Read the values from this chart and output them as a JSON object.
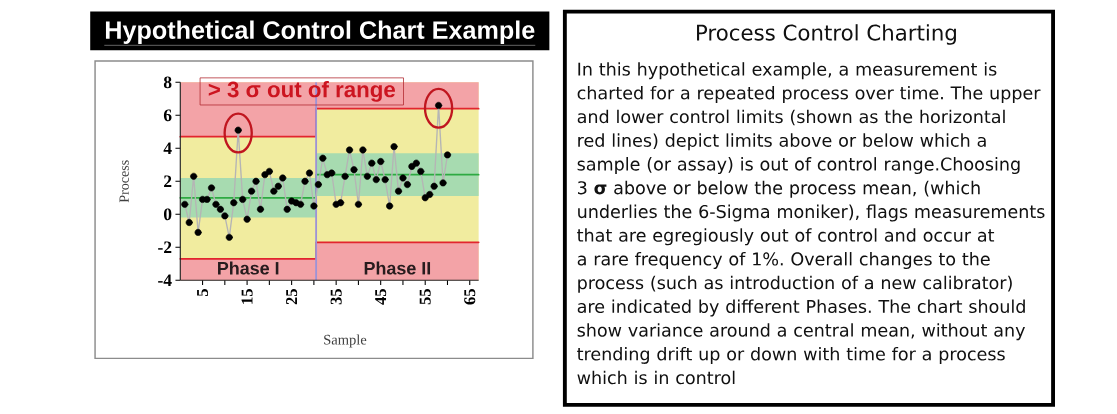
{
  "chart_data": [
    {
      "type": "line",
      "title": "Hypothetical Control Chart Example",
      "xlabel": "Sample",
      "ylabel": "Process",
      "xlim": [
        0,
        67
      ],
      "ylim": [
        -4,
        8
      ],
      "xticks": [
        5,
        {
          "value": 10,
          "label": null
        },
        15,
        {
          "value": 20,
          "label": null
        },
        25,
        {
          "value": 30,
          "label": null
        },
        35,
        {
          "value": 40,
          "label": null
        },
        45,
        {
          "value": 50,
          "label": null
        },
        55,
        {
          "value": 60,
          "label": null
        },
        65
      ],
      "yticks": [
        -4,
        -2,
        0,
        2,
        4,
        6,
        8
      ],
      "x": [
        1,
        2,
        3,
        4,
        5,
        6,
        7,
        8,
        9,
        10,
        11,
        12,
        13,
        14,
        15,
        16,
        17,
        18,
        19,
        20,
        21,
        22,
        23,
        24,
        25,
        26,
        27,
        28,
        29,
        30,
        31,
        32,
        33,
        34,
        35,
        36,
        37,
        38,
        39,
        40,
        41,
        42,
        43,
        44,
        45,
        46,
        47,
        48,
        49,
        50,
        51,
        52,
        53,
        54,
        55,
        56,
        57,
        58,
        59,
        60
      ],
      "bands": [
        {
          "axis": "x",
          "from": 0,
          "to": 30.5,
          "label": "Phase I",
          "color": "#f1ec9f"
        },
        {
          "axis": "x",
          "from": 30.5,
          "to": 67,
          "label": "Phase II",
          "color": "#f1ec9f"
        }
      ],
      "ref_lines": [
        {
          "axis": "x",
          "value": 30.5,
          "color": "#9d93d6"
        }
      ],
      "annotations": [
        "> 3 σ out of range"
      ],
      "series": [
        {
          "type": "line",
          "color": "#e2252e",
          "x": [
            0,
            30.5,
            30.5,
            67
          ],
          "values": [
            4.7,
            4.7,
            6.4,
            6.4
          ],
          "lower": [
            4.7,
            4.7,
            6.4,
            6.4
          ],
          "upper": [
            8,
            8,
            8,
            8
          ]
        },
        {
          "type": "line",
          "color": "#e2252e",
          "x": [
            0,
            30.5,
            30.5,
            67
          ],
          "values": [
            -2.7,
            -2.7,
            -1.7,
            -1.7
          ],
          "lower": [
            -4,
            -4,
            -4,
            -4
          ],
          "upper": [
            -2.7,
            -2.7,
            -1.7,
            -1.7
          ]
        },
        {
          "type": "line",
          "color": "#2eaa42",
          "x": [
            0,
            30.5,
            30.5,
            67
          ],
          "values": [
            1.0,
            1.0,
            2.4,
            2.4
          ],
          "lower": [
            -0.2,
            -0.2,
            1.1,
            1.1
          ],
          "upper": [
            2.2,
            2.2,
            3.7,
            3.7
          ]
        },
        {
          "type": "line",
          "color": "#b5b5b5",
          "values": [
            0.6,
            -0.5,
            2.3,
            -1.1,
            0.9,
            0.9,
            1.6,
            0.6,
            0.3,
            -0.1,
            -1.4,
            0.7,
            5.1,
            0.9,
            -0.3,
            1.4,
            2.0,
            0.3,
            2.4,
            2.6,
            1.4,
            1.7,
            2.2,
            0.3,
            0.8,
            0.7,
            0.6,
            2.0,
            2.5,
            0.5,
            1.8,
            3.4,
            2.4,
            2.5,
            0.6,
            0.7,
            2.3,
            3.9,
            2.7,
            0.6,
            3.9,
            2.3,
            3.1,
            2.1,
            3.2,
            2.1,
            0.5,
            4.1,
            1.4,
            2.2,
            1.8,
            2.9,
            3.1,
            2.6,
            1.0,
            1.2,
            1.7,
            6.6,
            1.9,
            3.6
          ]
        },
        {
          "type": "scatter",
          "color": "#000000",
          "marker": "circle",
          "values": [
            0.6,
            -0.5,
            2.3,
            -1.1,
            0.9,
            0.9,
            1.6,
            0.6,
            0.3,
            -0.1,
            -1.4,
            0.7,
            5.1,
            0.9,
            -0.3,
            1.4,
            2.0,
            0.3,
            2.4,
            2.6,
            1.4,
            1.7,
            2.2,
            0.3,
            0.8,
            0.7,
            0.6,
            2.0,
            2.5,
            0.5,
            1.8,
            3.4,
            2.4,
            2.5,
            0.6,
            0.7,
            2.3,
            3.9,
            2.7,
            0.6,
            3.9,
            2.3,
            3.1,
            2.1,
            3.2,
            2.1,
            0.5,
            4.1,
            1.4,
            2.2,
            1.8,
            2.9,
            3.1,
            2.6,
            1.0,
            1.2,
            1.7,
            6.6,
            1.9,
            3.6
          ]
        }
      ]
    },
    {
      "type": "other",
      "title": "Process Control Charting",
      "annotations": [
        "In this hypothetical example, a measurement is charted for a repeated process over time. The upper and lower control limits (shown as the horizontal red lines) depict limits above or below which a sample (or assay) is out of control range.Choosing 3 **σ** above or below the process mean, (which underlies the 6-Sigma moniker), flags measurements that are egregiously out of control and occur at a rare frequency of 1%. Overall changes to the process (such as introduction of a new calibrator) are indicated by different Phases. The chart should show variance around a central mean, without any trending drift up or down with time for a process which is in control"
      ]
    }
  ]
}
